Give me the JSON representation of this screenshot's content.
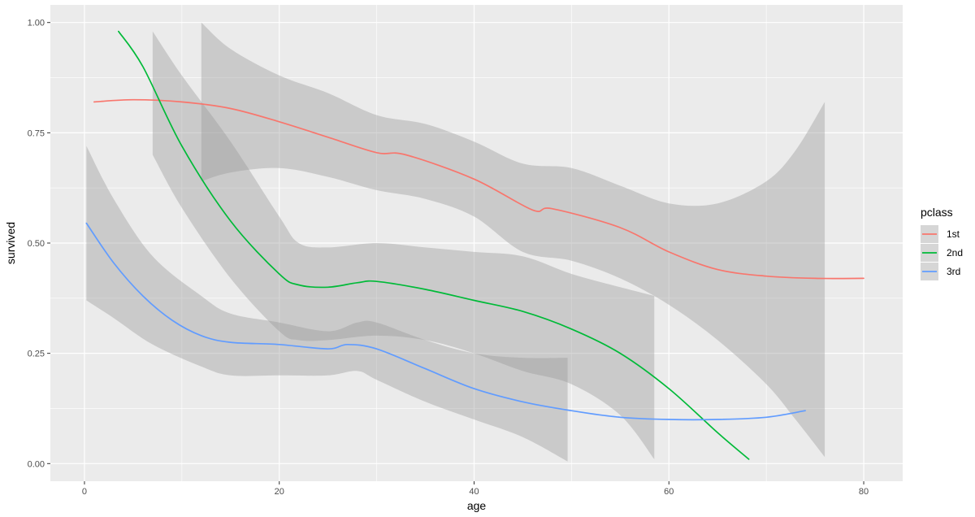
{
  "chart_data": {
    "type": "line",
    "xlabel": "age",
    "ylabel": "survived",
    "xlim": [
      -3.5,
      84
    ],
    "ylim": [
      -0.04,
      1.04
    ],
    "x_ticks": [
      0,
      20,
      40,
      60,
      80
    ],
    "y_ticks": [
      0.0,
      0.25,
      0.5,
      0.75,
      1.0
    ],
    "x_tick_labels": [
      "0",
      "20",
      "40",
      "60",
      "80"
    ],
    "y_tick_labels": [
      "0.00",
      "0.25",
      "0.50",
      "0.75",
      "1.00"
    ],
    "grid": true,
    "panel_background": "#EBEBEB",
    "ribbon_color": "#999999",
    "legend": {
      "title": "pclass",
      "position": "right"
    },
    "series": [
      {
        "name": "1st",
        "color": "#F8766D",
        "points": [
          [
            1,
            0.82
          ],
          [
            5,
            0.825
          ],
          [
            10,
            0.82
          ],
          [
            15,
            0.805
          ],
          [
            20,
            0.775
          ],
          [
            25,
            0.74
          ],
          [
            30,
            0.705
          ],
          [
            33,
            0.7
          ],
          [
            40,
            0.645
          ],
          [
            46,
            0.575
          ],
          [
            48,
            0.578
          ],
          [
            55,
            0.535
          ],
          [
            60,
            0.48
          ],
          [
            65,
            0.44
          ],
          [
            70,
            0.425
          ],
          [
            75,
            0.42
          ],
          [
            80,
            0.42
          ]
        ],
        "ci": [
          [
            12,
            1.0,
            0.64
          ],
          [
            15,
            0.94,
            0.66
          ],
          [
            20,
            0.88,
            0.67
          ],
          [
            25,
            0.84,
            0.65
          ],
          [
            30,
            0.79,
            0.62
          ],
          [
            35,
            0.77,
            0.6
          ],
          [
            40,
            0.73,
            0.56
          ],
          [
            45,
            0.68,
            0.48
          ],
          [
            50,
            0.67,
            0.46
          ],
          [
            55,
            0.63,
            0.42
          ],
          [
            60,
            0.59,
            0.36
          ],
          [
            65,
            0.59,
            0.28
          ],
          [
            70,
            0.64,
            0.18
          ],
          [
            73,
            0.71,
            0.1
          ],
          [
            76,
            0.82,
            0.015
          ]
        ]
      },
      {
        "name": "2nd",
        "color": "#00BA38",
        "points": [
          [
            3.5,
            0.98
          ],
          [
            6,
            0.9
          ],
          [
            10,
            0.72
          ],
          [
            15,
            0.55
          ],
          [
            20,
            0.43
          ],
          [
            22,
            0.405
          ],
          [
            25,
            0.4
          ],
          [
            28,
            0.41
          ],
          [
            30,
            0.413
          ],
          [
            35,
            0.395
          ],
          [
            40,
            0.37
          ],
          [
            45,
            0.345
          ],
          [
            50,
            0.305
          ],
          [
            55,
            0.25
          ],
          [
            60,
            0.17
          ],
          [
            65,
            0.07
          ],
          [
            68.2,
            0.01
          ]
        ],
        "ci": [
          [
            7,
            0.98,
            0.7
          ],
          [
            10,
            0.88,
            0.58
          ],
          [
            15,
            0.73,
            0.42
          ],
          [
            20,
            0.56,
            0.3
          ],
          [
            22,
            0.5,
            0.28
          ],
          [
            25,
            0.49,
            0.28
          ],
          [
            30,
            0.5,
            0.29
          ],
          [
            35,
            0.49,
            0.28
          ],
          [
            40,
            0.48,
            0.25
          ],
          [
            45,
            0.47,
            0.21
          ],
          [
            50,
            0.43,
            0.18
          ],
          [
            55,
            0.4,
            0.11
          ],
          [
            58.5,
            0.38,
            0.01
          ]
        ]
      },
      {
        "name": "3rd",
        "color": "#619CFF",
        "points": [
          [
            0.2,
            0.545
          ],
          [
            3,
            0.455
          ],
          [
            6,
            0.38
          ],
          [
            9,
            0.325
          ],
          [
            12,
            0.29
          ],
          [
            15,
            0.275
          ],
          [
            20,
            0.27
          ],
          [
            25,
            0.26
          ],
          [
            27,
            0.27
          ],
          [
            30,
            0.26
          ],
          [
            35,
            0.215
          ],
          [
            40,
            0.17
          ],
          [
            45,
            0.14
          ],
          [
            50,
            0.12
          ],
          [
            55,
            0.105
          ],
          [
            60,
            0.1
          ],
          [
            65,
            0.1
          ],
          [
            70,
            0.105
          ],
          [
            74,
            0.12
          ]
        ],
        "ci": [
          [
            0.2,
            0.72,
            0.37
          ],
          [
            3,
            0.6,
            0.33
          ],
          [
            7,
            0.47,
            0.27
          ],
          [
            12,
            0.38,
            0.22
          ],
          [
            15,
            0.34,
            0.2
          ],
          [
            20,
            0.32,
            0.2
          ],
          [
            25,
            0.3,
            0.2
          ],
          [
            28,
            0.32,
            0.21
          ],
          [
            30,
            0.32,
            0.19
          ],
          [
            35,
            0.28,
            0.14
          ],
          [
            40,
            0.25,
            0.1
          ],
          [
            45,
            0.24,
            0.06
          ],
          [
            49.6,
            0.24,
            0.005
          ]
        ]
      }
    ]
  }
}
